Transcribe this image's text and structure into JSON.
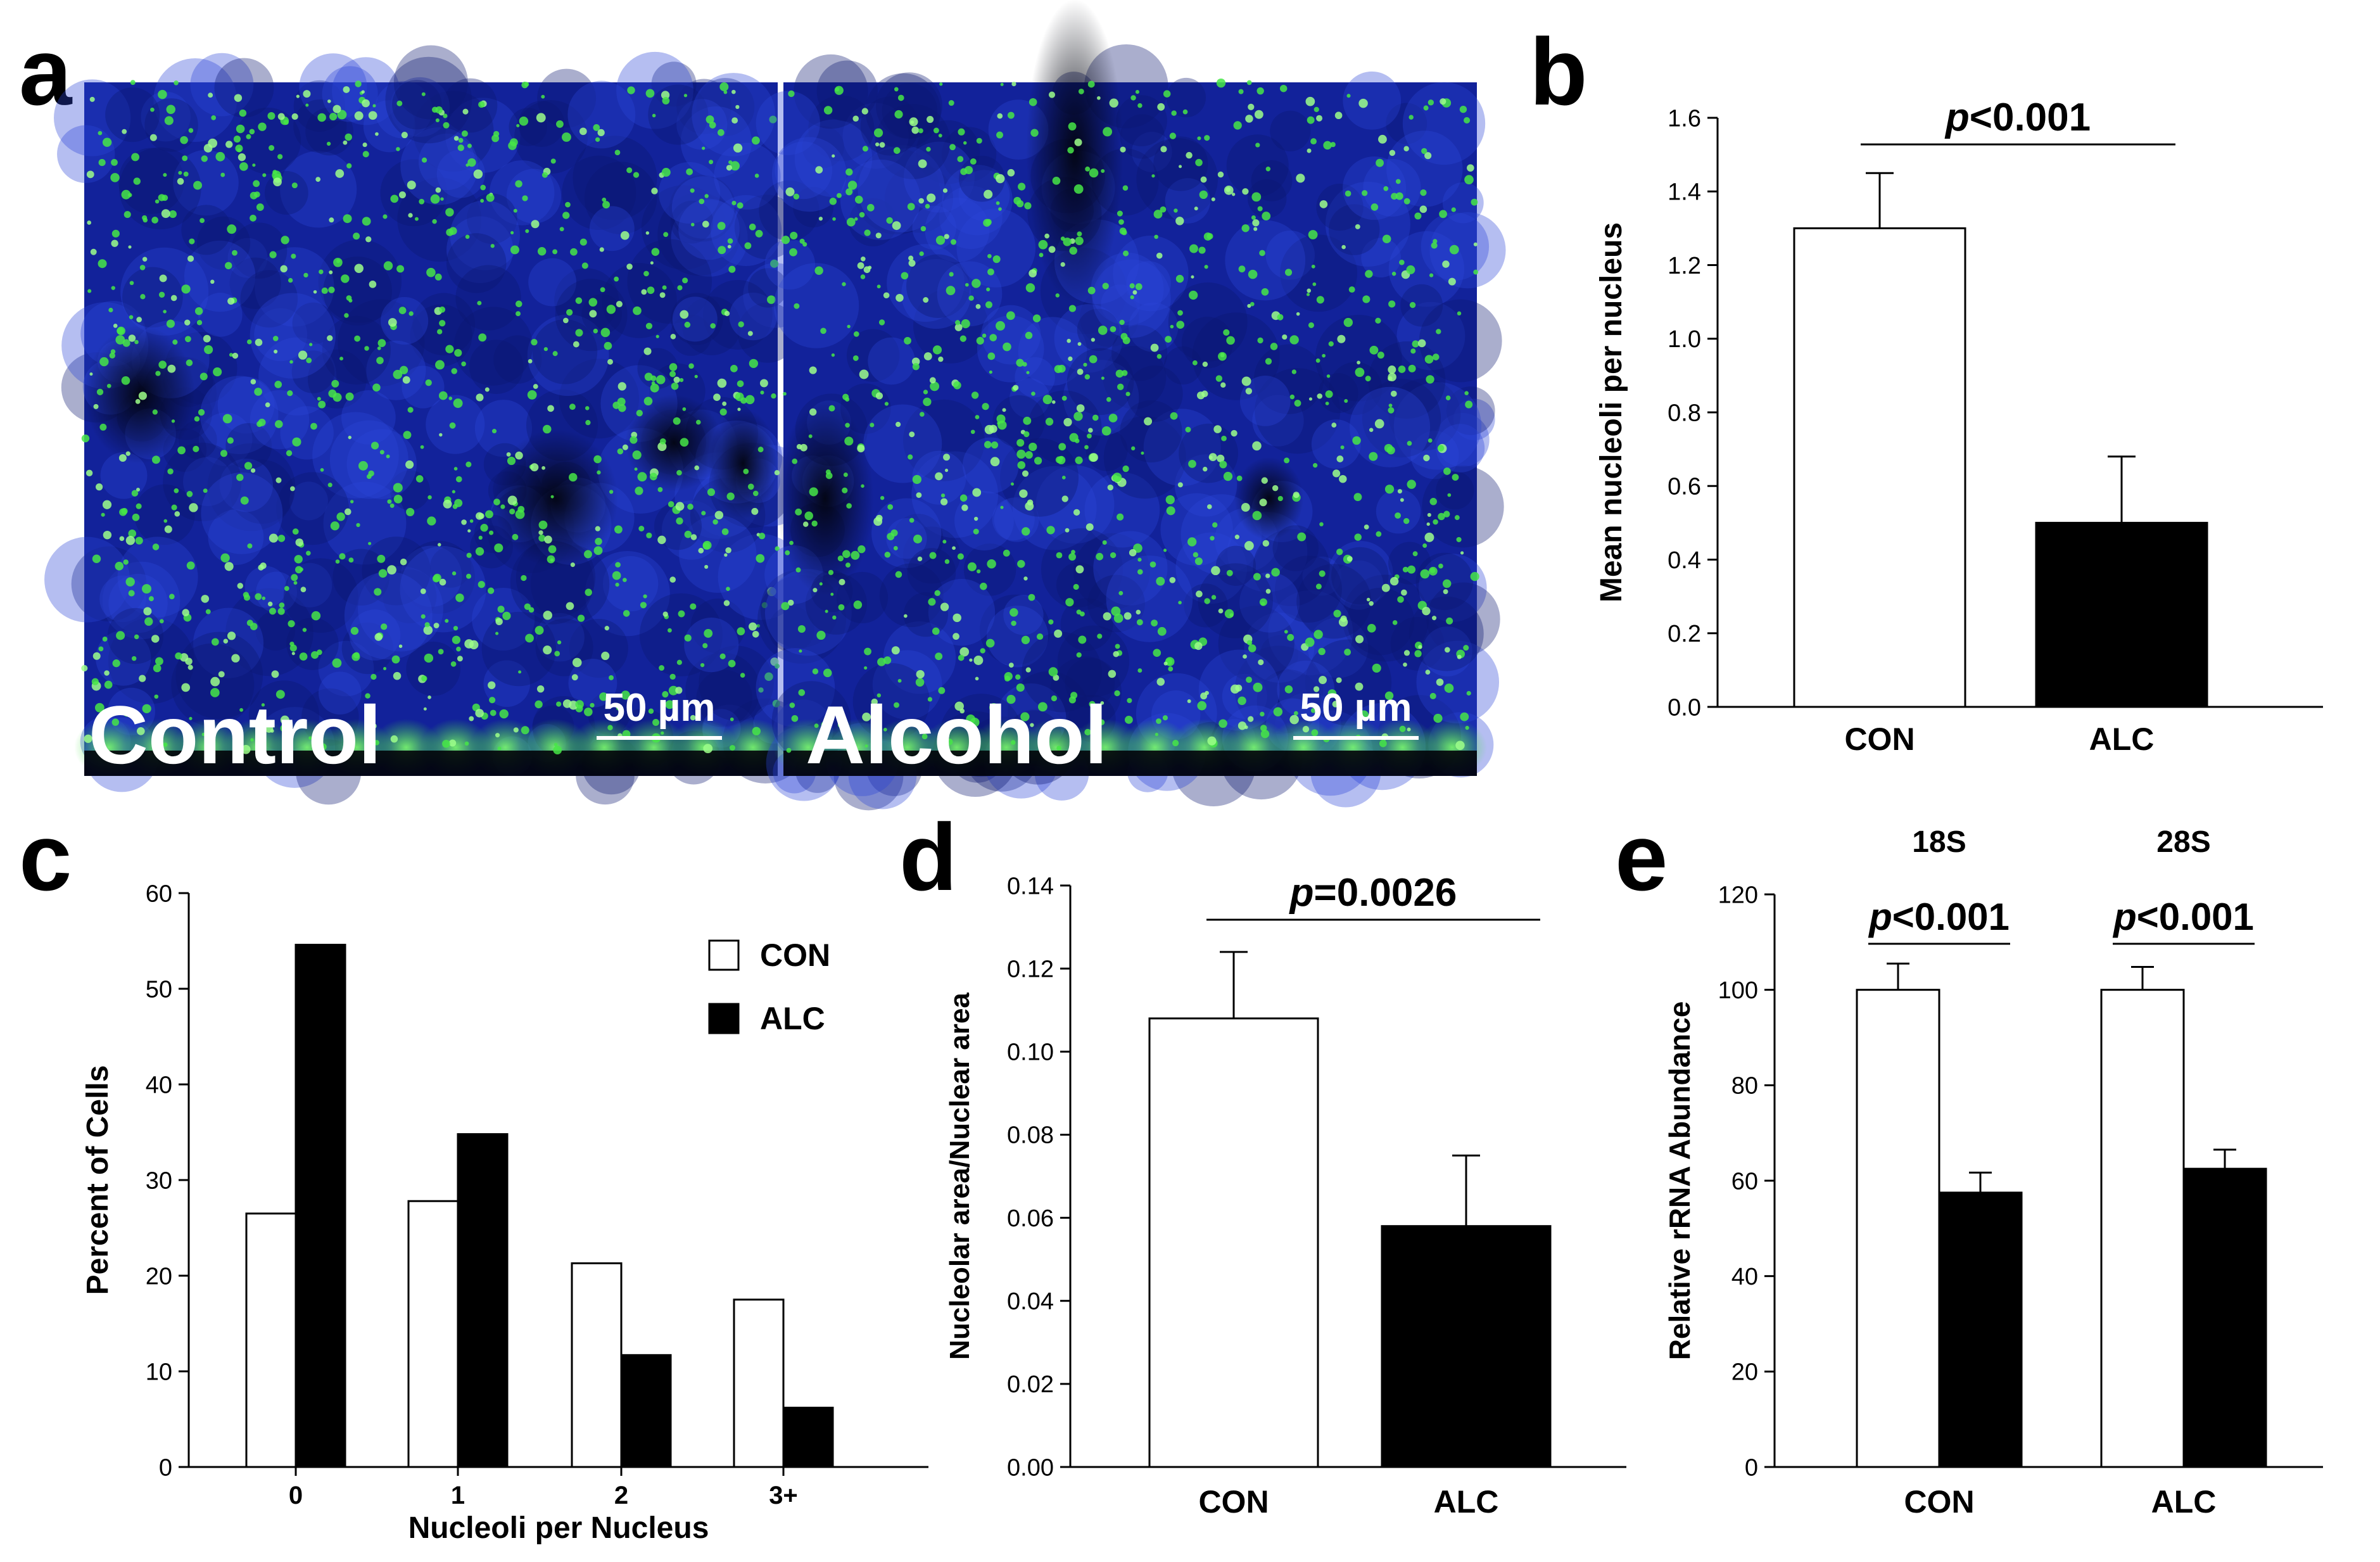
{
  "panel_letters": {
    "a": "a",
    "b": "b",
    "c": "c",
    "d": "d",
    "e": "e"
  },
  "micrographs": [
    {
      "label": "Control",
      "scale_bar": "50 µm"
    },
    {
      "label": "Alcohol",
      "scale_bar": "50 µm"
    }
  ],
  "colors": {
    "bg": "#ffffff",
    "axis": "#000000",
    "con_bar": "#ffffff",
    "alc_bar": "#000000",
    "nuclei_stain": "#1a2fb0",
    "nucleoli_stain": "#3cdc3c"
  },
  "chart_data": [
    {
      "panel": "b",
      "type": "bar",
      "categories": [
        "CON",
        "ALC"
      ],
      "values": [
        1.3,
        0.5
      ],
      "errors": [
        0.15,
        0.18
      ],
      "ylabel": "Mean nucleoli per nucleus",
      "ylim": [
        0.0,
        1.6
      ],
      "yticks": [
        "0.0",
        "0.2",
        "0.4",
        "0.6",
        "0.8",
        "1.0",
        "1.2",
        "1.4",
        "1.6"
      ],
      "significance": [
        {
          "p_italic": "p",
          "text": "<0.001"
        }
      ]
    },
    {
      "panel": "c",
      "type": "bar",
      "categories": [
        "0",
        "1",
        "2",
        "3+"
      ],
      "series": [
        {
          "name": "CON",
          "values": [
            26.5,
            27.8,
            21.3,
            17.5
          ]
        },
        {
          "name": "ALC",
          "values": [
            54.6,
            34.8,
            11.7,
            6.2
          ]
        }
      ],
      "xlabel": "Nucleoli per Nucleus",
      "ylabel": "Percent of Cells",
      "ylim": [
        0,
        60
      ],
      "yticks": [
        "0",
        "10",
        "20",
        "30",
        "40",
        "50",
        "60"
      ],
      "legend": "top-right"
    },
    {
      "panel": "d",
      "type": "bar",
      "categories": [
        "CON",
        "ALC"
      ],
      "values": [
        0.108,
        0.058
      ],
      "errors": [
        0.016,
        0.017
      ],
      "ylabel": "Nucleolar area/Nuclear area",
      "ylim": [
        0.0,
        0.14
      ],
      "yticks": [
        "0.00",
        "0.02",
        "0.04",
        "0.06",
        "0.08",
        "0.10",
        "0.12",
        "0.14"
      ],
      "significance": [
        {
          "p_italic": "p",
          "text": "=0.0026"
        }
      ]
    },
    {
      "panel": "e",
      "type": "bar",
      "categories": [
        "CON",
        "ALC"
      ],
      "groups": [
        "18S",
        "28S"
      ],
      "series": [
        {
          "values": [
            100,
            100
          ],
          "errors": [
            5.5,
            4.8
          ]
        },
        {
          "values": [
            57.5,
            62.5
          ],
          "errors": [
            4.2,
            4.0
          ]
        }
      ],
      "ylabel": "Relative rRNA Abundance",
      "ylim": [
        0,
        120
      ],
      "yticks": [
        "0",
        "20",
        "40",
        "60",
        "80",
        "100",
        "120"
      ],
      "significance": [
        {
          "p_italic": "p",
          "text": "<0.001"
        },
        {
          "p_italic": "p",
          "text": "<0.001"
        }
      ]
    }
  ]
}
